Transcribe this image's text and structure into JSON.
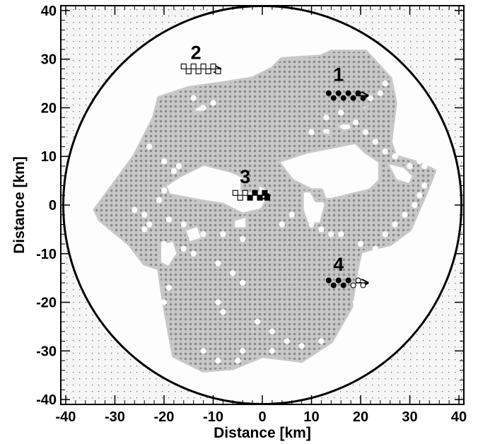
{
  "chart_data": {
    "type": "scatter",
    "title": "",
    "xlabel": "Distance [km]",
    "ylabel": "Distance [km]",
    "xlim": [
      -41,
      41
    ],
    "ylim": [
      -41,
      41
    ],
    "x_ticks": [
      -40,
      -30,
      -20,
      -10,
      0,
      10,
      20,
      30,
      40
    ],
    "y_ticks": [
      -40,
      -30,
      -20,
      -10,
      0,
      10,
      20,
      30,
      40
    ],
    "grid": false,
    "circle": {
      "center": [
        0,
        0
      ],
      "radius": 40.5
    },
    "colors": {
      "background_dots": "#6e6e6e",
      "array_fill": "#c8c8c8",
      "array_dots": "#8a8a8a",
      "marker": "#000000"
    },
    "array_boundary": [
      [
        -34,
        -1
      ],
      [
        -26,
        10
      ],
      [
        -22,
        18
      ],
      [
        -21,
        22
      ],
      [
        -15,
        24
      ],
      [
        -8,
        25
      ],
      [
        -2,
        26
      ],
      [
        2,
        28
      ],
      [
        4,
        30
      ],
      [
        12,
        30.5
      ],
      [
        14,
        31.5
      ],
      [
        21,
        31.5
      ],
      [
        26,
        26
      ],
      [
        27,
        21
      ],
      [
        26,
        13
      ],
      [
        27,
        10
      ],
      [
        32,
        8.5
      ],
      [
        35,
        7
      ],
      [
        33,
        2
      ],
      [
        30,
        -5
      ],
      [
        26,
        -8
      ],
      [
        20,
        -9.5
      ],
      [
        19,
        -14
      ],
      [
        18,
        -21
      ],
      [
        14,
        -28
      ],
      [
        8,
        -32
      ],
      [
        0,
        -31
      ],
      [
        -6,
        -33.5
      ],
      [
        -12,
        -34
      ],
      [
        -18,
        -31
      ],
      [
        -20,
        -20
      ],
      [
        -21,
        -13
      ],
      [
        -24,
        -12
      ],
      [
        -27,
        -8
      ],
      [
        -33,
        -3
      ]
    ],
    "array_holes": [
      [
        [
          -17,
          6
        ],
        [
          -12,
          8.5
        ],
        [
          -6,
          7
        ],
        [
          -2,
          5
        ],
        [
          2,
          3
        ],
        [
          0,
          -1
        ],
        [
          -4,
          -2
        ],
        [
          -8,
          0
        ],
        [
          -14,
          1
        ],
        [
          -19,
          2
        ],
        [
          -20,
          4
        ]
      ],
      [
        [
          3,
          9
        ],
        [
          9,
          11
        ],
        [
          14,
          12
        ],
        [
          19,
          13
        ],
        [
          21,
          11
        ],
        [
          24,
          9
        ],
        [
          24,
          5
        ],
        [
          22,
          3
        ],
        [
          18,
          2
        ],
        [
          14,
          1
        ],
        [
          11,
          1
        ],
        [
          10,
          3
        ],
        [
          6,
          5
        ]
      ],
      [
        [
          8,
          3
        ],
        [
          12,
          3
        ],
        [
          13,
          0
        ],
        [
          12,
          -4
        ],
        [
          9,
          -4
        ],
        [
          8,
          -1
        ]
      ],
      [
        [
          25,
          9
        ],
        [
          29,
          8
        ],
        [
          31,
          6
        ],
        [
          30,
          4
        ],
        [
          27,
          5
        ]
      ],
      [
        [
          16,
          17
        ],
        [
          18,
          17
        ],
        [
          18.5,
          15.5
        ],
        [
          16.5,
          15
        ],
        [
          15,
          16
        ]
      ],
      [
        [
          12,
          16
        ],
        [
          14,
          16
        ],
        [
          14,
          14
        ],
        [
          12,
          14.5
        ]
      ],
      [
        [
          -21,
          -8
        ],
        [
          -18,
          -7
        ],
        [
          -17,
          -10
        ],
        [
          -19,
          -13
        ],
        [
          -21,
          -12
        ]
      ],
      [
        [
          -16,
          -5
        ],
        [
          -13,
          -4
        ],
        [
          -12,
          -7
        ],
        [
          -15,
          -8
        ]
      ],
      [
        [
          20,
          20
        ],
        [
          22,
          21
        ],
        [
          21,
          19
        ]
      ],
      [
        [
          -14,
          20
        ],
        [
          -12,
          21
        ],
        [
          -12,
          19
        ],
        [
          -14,
          19
        ]
      ],
      [
        [
          -6,
          -3
        ],
        [
          -3,
          -2
        ],
        [
          -3,
          -5
        ],
        [
          -6,
          -5
        ]
      ],
      [
        [
          -4,
          5
        ],
        [
          -1,
          5
        ],
        [
          -1,
          3
        ],
        [
          -4,
          3
        ]
      ]
    ],
    "spots": [
      [
        -16,
        -9
      ],
      [
        -14,
        -10
      ],
      [
        -9,
        -12
      ],
      [
        -6,
        -14
      ],
      [
        -4,
        -16
      ],
      [
        -9,
        -20
      ],
      [
        -8,
        -22
      ],
      [
        -1,
        -24
      ],
      [
        2,
        -26
      ],
      [
        -4,
        -30
      ],
      [
        2,
        -30
      ],
      [
        -22,
        -21
      ],
      [
        -20,
        -20
      ],
      [
        -26,
        -1
      ],
      [
        -24,
        -2
      ],
      [
        -23,
        -4
      ],
      [
        -20,
        -8
      ],
      [
        -24,
        -5
      ],
      [
        -19,
        -3
      ],
      [
        -16,
        -4
      ],
      [
        -21,
        1
      ],
      [
        -20,
        3
      ],
      [
        -18,
        4
      ],
      [
        10,
        -4
      ],
      [
        12,
        -5
      ],
      [
        14,
        -6
      ],
      [
        16,
        -6
      ],
      [
        20,
        -8
      ],
      [
        21,
        -12
      ],
      [
        23,
        -9
      ],
      [
        25,
        -6
      ],
      [
        27,
        -4
      ],
      [
        29,
        -2
      ],
      [
        31,
        0
      ],
      [
        32,
        2
      ],
      [
        33,
        4
      ],
      [
        -22,
        -15
      ],
      [
        -19,
        -17
      ],
      [
        5,
        -28
      ],
      [
        8,
        -29
      ],
      [
        12,
        -28
      ],
      [
        -12,
        -30
      ],
      [
        -9,
        -32
      ],
      [
        -5,
        -32
      ],
      [
        20,
        -16
      ],
      [
        23,
        -19
      ],
      [
        19,
        -20
      ],
      [
        25,
        25
      ],
      [
        24,
        23
      ],
      [
        22,
        22
      ],
      [
        10,
        15
      ],
      [
        13,
        18
      ],
      [
        16,
        19
      ],
      [
        19,
        17
      ],
      [
        21,
        15
      ],
      [
        23,
        13
      ],
      [
        25,
        11
      ],
      [
        27,
        10
      ],
      [
        28,
        12
      ],
      [
        30,
        8
      ],
      [
        32,
        9
      ],
      [
        33,
        8
      ],
      [
        -10,
        21
      ],
      [
        -12,
        20
      ],
      [
        -14,
        22
      ],
      [
        -25,
        15
      ],
      [
        -23,
        12
      ],
      [
        -20,
        9
      ],
      [
        -18,
        7
      ],
      [
        -17,
        8
      ],
      [
        -8,
        -6
      ],
      [
        -4,
        -7
      ],
      [
        -12,
        -6
      ],
      [
        4,
        -4
      ],
      [
        6,
        -2
      ]
    ],
    "series": [
      {
        "label": "1",
        "annotation_pos": [
          15.5,
          25.5
        ],
        "markers": [
          [
            13.5,
            23
          ],
          [
            14.5,
            22
          ],
          [
            15.5,
            23
          ],
          [
            16.5,
            22
          ],
          [
            17.5,
            23
          ],
          [
            18.5,
            22
          ],
          [
            19.5,
            23
          ],
          [
            20.5,
            22
          ]
        ],
        "marker_style": [
          "filled-circle",
          "filled-circle",
          "filled-circle",
          "filled-circle",
          "filled-circle",
          "filled-circle",
          "filled-circle",
          "filled-circle"
        ],
        "arrow": [
          [
            19,
            22.5
          ],
          [
            21.5,
            22.5
          ]
        ]
      },
      {
        "label": "2",
        "annotation_pos": [
          -13.5,
          30
        ],
        "markers": [
          [
            -16,
            28.5
          ],
          [
            -15,
            27.5
          ],
          [
            -14,
            28.5
          ],
          [
            -13,
            27.5
          ],
          [
            -12,
            28.5
          ],
          [
            -11,
            27.5
          ],
          [
            -10,
            28.5
          ],
          [
            -9,
            27.5
          ]
        ],
        "marker_style": [
          "open-square",
          "open-square",
          "open-square",
          "open-square",
          "open-square",
          "open-square",
          "open-square",
          "open-square"
        ],
        "arrow": [
          [
            -11,
            28
          ],
          [
            -8.5,
            28
          ]
        ]
      },
      {
        "label": "3",
        "annotation_pos": [
          -3.5,
          4.5
        ],
        "markers": [
          [
            -5.5,
            2.5
          ],
          [
            -4.5,
            1.5
          ],
          [
            -3.5,
            2.5
          ],
          [
            -2.5,
            1.5
          ],
          [
            -1.5,
            2.5
          ],
          [
            -0.5,
            1.5
          ],
          [
            0.5,
            2.5
          ],
          [
            1,
            1.5
          ]
        ],
        "marker_style": [
          "open-square",
          "open-square",
          "open-square",
          "filled-square",
          "filled-square",
          "filled-square",
          "filled-square",
          "filled-square"
        ],
        "arrow": [
          [
            -1,
            2
          ],
          [
            1.5,
            2
          ]
        ]
      },
      {
        "label": "4",
        "annotation_pos": [
          15.5,
          -13.5
        ],
        "markers": [
          [
            13.5,
            -15.5
          ],
          [
            14.5,
            -16.5
          ],
          [
            15.5,
            -15.5
          ],
          [
            16.5,
            -16.5
          ],
          [
            17.5,
            -15.5
          ],
          [
            18.5,
            -16.5
          ],
          [
            19.5,
            -15.5
          ],
          [
            20.5,
            -16.5
          ]
        ],
        "marker_style": [
          "filled-circle",
          "filled-circle",
          "filled-circle",
          "filled-circle",
          "filled-circle",
          "open-circle",
          "open-circle",
          "open-circle"
        ],
        "arrow": [
          [
            19,
            -16
          ],
          [
            21.5,
            -16
          ]
        ]
      }
    ]
  }
}
